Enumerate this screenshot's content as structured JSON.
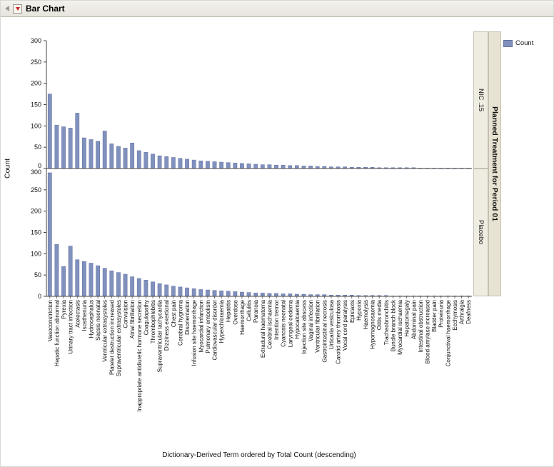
{
  "header": {
    "title": "Bar Chart"
  },
  "legend": {
    "label": "Count",
    "swatch_color": "#8191BE"
  },
  "chart_data": {
    "type": "bar",
    "title": "Bar Chart",
    "xlabel": "Dictionary-Derived Term ordered by Total Count (descending)",
    "ylabel": "Count",
    "ylim": [
      0,
      300
    ],
    "yticks": [
      0,
      50,
      100,
      150,
      200,
      250,
      300
    ],
    "group_label": "Planned Treatment for Period 01",
    "panels": [
      "NIC .15",
      "Placebo"
    ],
    "legend_position": "top-right",
    "grid": false,
    "bar_color": "#8191BE",
    "bar_stroke": "#61719F",
    "categories": [
      "Vasoconstriction",
      "Hepatic function abnormal",
      "Pyrexia",
      "Urinary tract infection",
      "Atelectasis",
      "Isosthenuria",
      "Hydrocephalus",
      "Sepsis neonatal",
      "Ventricular extrasystoles",
      "Platelet destruction increased",
      "Supraventricular extrasystoles",
      "Convulsion",
      "Atrial fibrillation",
      "Inappropriate antidiuretic hormone secretion",
      "Coagulopathy",
      "Thrombophlebitis",
      "Supraventricular tachycardia",
      "Dizziness exertional",
      "Chest pain",
      "Cerebral hygroma",
      "Disorientation",
      "Infusion site haemorrhage",
      "Myocardial infarction",
      "Pulmonary embolism",
      "Cardiovascular disorder",
      "Hyperchloraemia",
      "Hepatitis",
      "Overdose",
      "Haemorrhage",
      "Cellulitis",
      "Paranoia",
      "Extradural haematoma",
      "Cerebral ischaemia",
      "Intention tremor",
      "Cyanosis neonatal",
      "Laryngeal oedema",
      "Hypocalcaemia",
      "Injection site abscess",
      "Vaginal infection",
      "Ventricular fibrillation",
      "Gastrointestinal necrosis",
      "Urticaria vesiculosa",
      "Carotid artery thrombosis",
      "Vocal cord paralysis",
      "Epistaxis",
      "Hypoxia",
      "Haemolysis",
      "Hypomagnesaemia",
      "Otitis media",
      "Tracheobronchitis",
      "Bundle branch block",
      "Myocardial ischaemia",
      "Hepatomegaly",
      "Abdominal pain",
      "Intestinal obstruction",
      "Blood amylase increased",
      "Bladder pain",
      "Proteinuria",
      "Conjunctival haemorrhage",
      "Ecchymosis",
      "Arthralgia",
      "Deafness"
    ],
    "series": [
      {
        "name": "NIC .15",
        "values": [
          175,
          102,
          98,
          95,
          130,
          72,
          68,
          64,
          88,
          58,
          52,
          48,
          60,
          42,
          38,
          34,
          30,
          28,
          26,
          24,
          22,
          20,
          18,
          17,
          16,
          15,
          14,
          13,
          12,
          11,
          10,
          9,
          9,
          8,
          8,
          7,
          7,
          6,
          6,
          5,
          5,
          4,
          4,
          4,
          3,
          3,
          3,
          3,
          2,
          2,
          2,
          2,
          2,
          2,
          1,
          1,
          1,
          1,
          1,
          1,
          1,
          1
        ]
      },
      {
        "name": "Placebo",
        "values": [
          290,
          122,
          70,
          118,
          86,
          82,
          78,
          72,
          66,
          60,
          56,
          52,
          46,
          42,
          38,
          34,
          30,
          27,
          24,
          22,
          20,
          18,
          16,
          15,
          14,
          13,
          12,
          11,
          10,
          9,
          8,
          8,
          7,
          7,
          6,
          6,
          5,
          5,
          4,
          4,
          4,
          3,
          3,
          3,
          3,
          2,
          2,
          2,
          2,
          2,
          1,
          1,
          1,
          1,
          1,
          1,
          1,
          1,
          1,
          1,
          1,
          1
        ]
      }
    ]
  }
}
